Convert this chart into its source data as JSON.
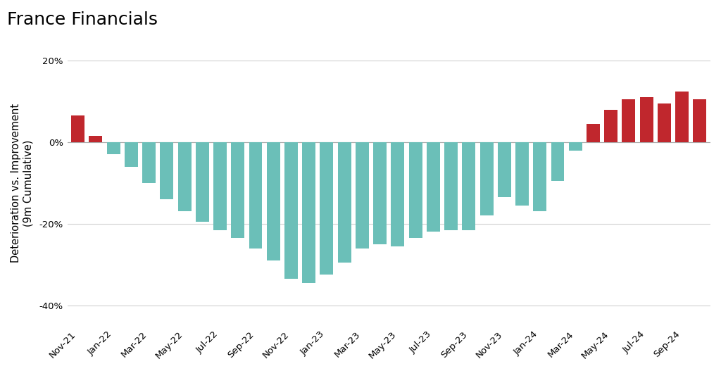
{
  "title": "France Financials",
  "ylabel": "Deterioration vs. Improvement\n(9m Cumulative)",
  "color_positive": "#C0272D",
  "color_negative": "#6BBFB8",
  "ylim": [
    -45,
    25
  ],
  "yticks": [
    -40,
    -20,
    0,
    20
  ],
  "ytick_labels": [
    "-40%",
    "-20%",
    "0%",
    "20%"
  ],
  "background_color": "#ffffff",
  "grid_color": "#d0d0d0",
  "title_fontsize": 18,
  "label_fontsize": 10.5,
  "tick_fontsize": 9.5,
  "start_year": 2021,
  "start_month": 11,
  "monthly_values": [
    6.5,
    1.5,
    -3.0,
    -6.0,
    -10.0,
    -14.0,
    -17.0,
    -19.5,
    -21.5,
    -23.5,
    -26.0,
    -29.0,
    -33.5,
    -34.5,
    -32.5,
    -29.5,
    -26.0,
    -25.0,
    -25.5,
    -23.5,
    -22.0,
    -21.5,
    -21.5,
    -18.0,
    -13.5,
    -15.5,
    -17.0,
    -9.5,
    -2.0,
    4.5,
    8.0,
    10.5,
    11.0,
    9.5,
    12.5,
    10.5
  ]
}
